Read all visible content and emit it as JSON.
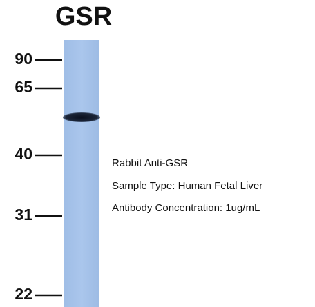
{
  "header": {
    "title": "GSR"
  },
  "markers": [
    "90",
    "65",
    "40",
    "31",
    "22"
  ],
  "annotations": [
    "Rabbit Anti-GSR",
    "Sample Type: Human Fetal Liver",
    "Antibody Concentration: 1ug/mL"
  ]
}
